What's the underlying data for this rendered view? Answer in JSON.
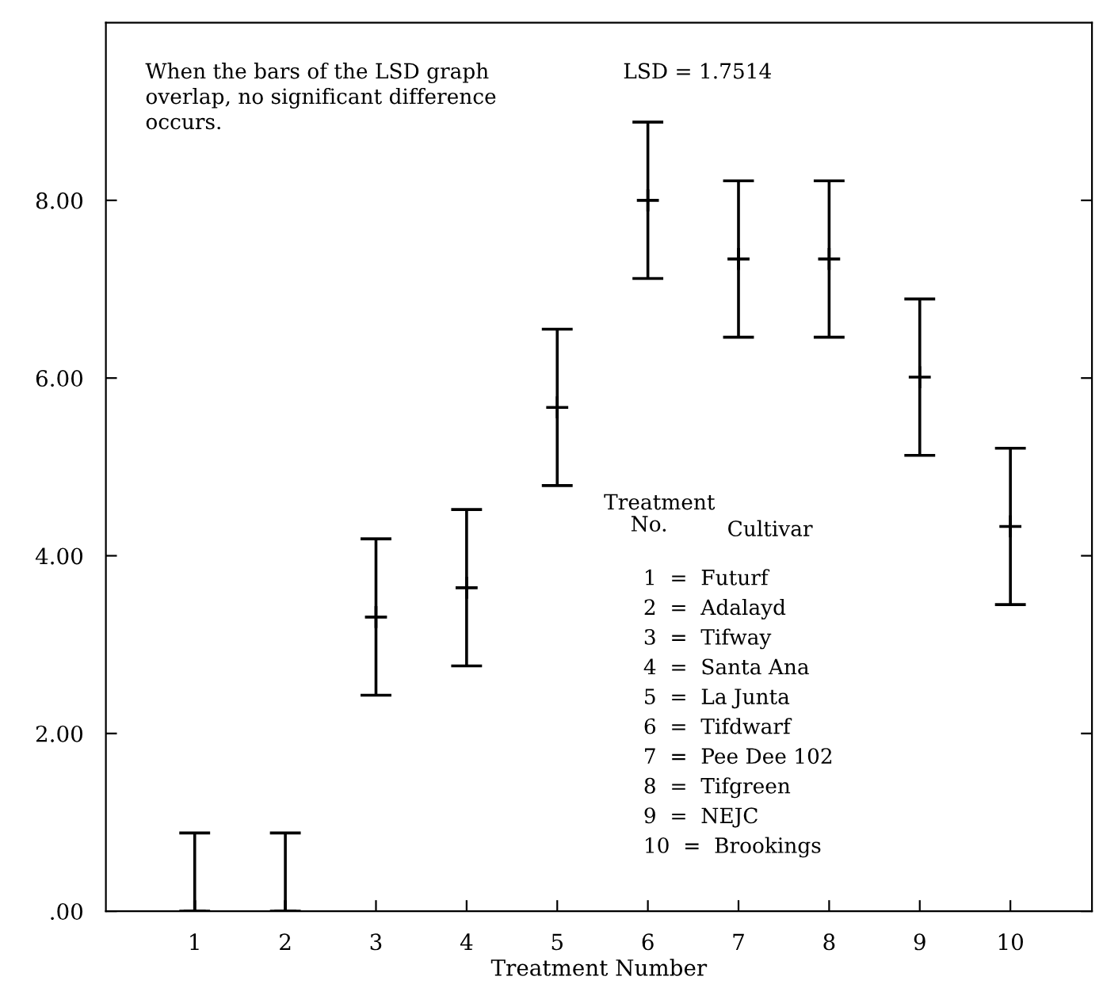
{
  "chart_data": {
    "type": "scatter",
    "xlabel": "Treatment Number",
    "categories": [
      "1",
      "2",
      "3",
      "4",
      "5",
      "6",
      "7",
      "8",
      "9",
      "10"
    ],
    "series": [
      {
        "color": "#000000",
        "values": [
          0,
          0,
          3.31,
          3.64,
          5.67,
          8.0,
          7.34,
          7.34,
          6.01,
          4.33
        ],
        "errors": [
          [
            0,
            0.88
          ],
          [
            0,
            0.88
          ],
          0.88,
          0.88,
          0.88,
          0.88,
          0.88,
          0.88,
          0.88,
          0.88
        ]
      }
    ],
    "marker": "cross",
    "ylim": [
      0,
      10
    ],
    "yticks": [
      {
        "value": 0,
        "label": ".00"
      },
      {
        "value": 2,
        "label": "2.00"
      },
      {
        "value": 4,
        "label": "4.00"
      },
      {
        "value": 6,
        "label": "6.00"
      },
      {
        "value": 8,
        "label": "8.00"
      }
    ],
    "grid": false,
    "annotations": [
      "When the bars of the LSD graph\noverlap, no significant difference\noccurs.",
      "LSD = 1.7514",
      "Treatment\n    No.",
      "Cultivar",
      "1  =  Futurf",
      "2  =  Adalayd",
      "3  =  Tifway",
      "4  =  Santa Ana",
      "5  =  La Junta",
      "6  =  Tifdwarf",
      "7  =  Pee Dee 102",
      "8  =  Tifgreen",
      "9  =  NEJC",
      "10  =  Brookings"
    ]
  }
}
